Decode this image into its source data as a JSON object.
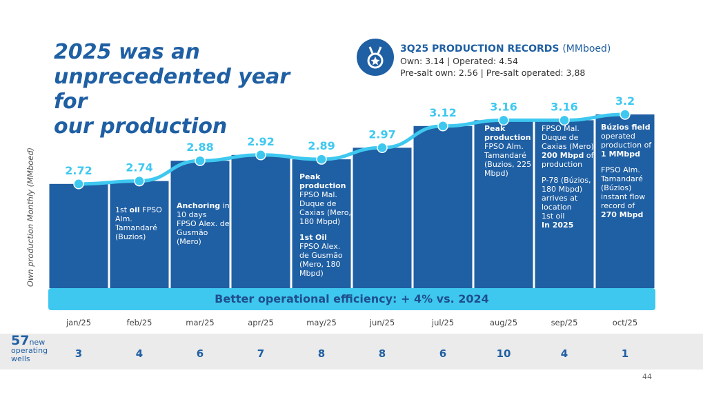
{
  "title_lines": [
    "2025 was an",
    "unprecedented year for",
    "our production"
  ],
  "records": {
    "icon": "medal-icon",
    "title": "3Q25 PRODUCTION RECORDS",
    "unit": "(MMboed)",
    "line1": "Own: 3.14 | Operated: 4.54",
    "line2": "Pre-salt own: 2.56 | Pre-salt operated: 3,88"
  },
  "efficiency_banner": "Better operational efficiency: + 4% vs. 2024",
  "wells": {
    "total": "57",
    "label_line1": "new",
    "label_line2": "operating",
    "label_line3": "wells",
    "values": [
      "3",
      "4",
      "6",
      "7",
      "8",
      "8",
      "6",
      "10",
      "4",
      "1"
    ]
  },
  "page_number": "44",
  "colors": {
    "bar": "#1f5fa3",
    "line": "#3ec8f0",
    "text_blue": "#1f5fa3"
  },
  "chart_data": {
    "type": "bar",
    "ylabel": "Own production Monthly (MMboed)",
    "categories": [
      "jan/25",
      "feb/25",
      "mar/25",
      "apr/25",
      "may/25",
      "jun/25",
      "jul/25",
      "aug/25",
      "sep/25",
      "oct/25"
    ],
    "values": [
      2.72,
      2.74,
      2.88,
      2.92,
      2.89,
      2.97,
      3.12,
      3.16,
      3.16,
      3.2
    ],
    "value_labels": [
      "2.72",
      "2.74",
      "2.88",
      "2.92",
      "2.89",
      "2.97",
      "3.12",
      "3.16",
      "3.16",
      "3.2"
    ],
    "ylim": [
      2.0,
      3.3
    ],
    "grid": false,
    "annotations": {
      "feb": {
        "line1_bold": "oil",
        "line1_rest": " FPSO",
        "line2": "Alm.",
        "line3": "Tamandaré",
        "line4": "(Buzios)",
        "ord": "1st"
      },
      "mar": {
        "bold": "Anchoring",
        "rest": " in",
        "line2": "10 days",
        "line3": "FPSO Alex. de",
        "line4": "Gusmão",
        "line5": "(Mero)"
      },
      "may": {
        "bold1": "Peak",
        "bold2": "production",
        "line3": "FPSO Mal.",
        "line4": "Duque de",
        "line5": "Caxias (Mero,",
        "line6": "180 Mbpd)",
        "ord": "1st",
        "bold3": "Oil",
        "line8": "FPSO Alex.",
        "line9": "de Gusmão",
        "line10": "(Mero, 180",
        "line11": "Mbpd)"
      },
      "aug": {
        "bold1": "Peak",
        "bold2": "production",
        "line3": "FPSO Alm.",
        "line4": "Tamandaré",
        "line5": "(Buzios, 225",
        "line6": "Mbpd)"
      },
      "sep": {
        "line1": "FPSO Mal.",
        "line2": "Duque de",
        "line3": "Caxias (Mero)",
        "bold1": "200 Mbpd",
        "rest1": " of",
        "line5": "production",
        "line6": "P-78 (Búzios,",
        "line7": "180 Mbpd)",
        "line8": "arrives at",
        "line9": "location",
        "ord": "1st",
        "rest2": " oil",
        "bold2": "In 2025"
      },
      "oct": {
        "bold1": "Búzios field",
        "line2": "operated",
        "line3": "production of",
        "bold2": "1 MMbpd",
        "line5": "FPSO Alm.",
        "line6": "Tamandaré",
        "line7": "(Búzios)",
        "line8": "instant flow",
        "line9": "record of",
        "bold3": "270 Mbpd"
      }
    }
  }
}
